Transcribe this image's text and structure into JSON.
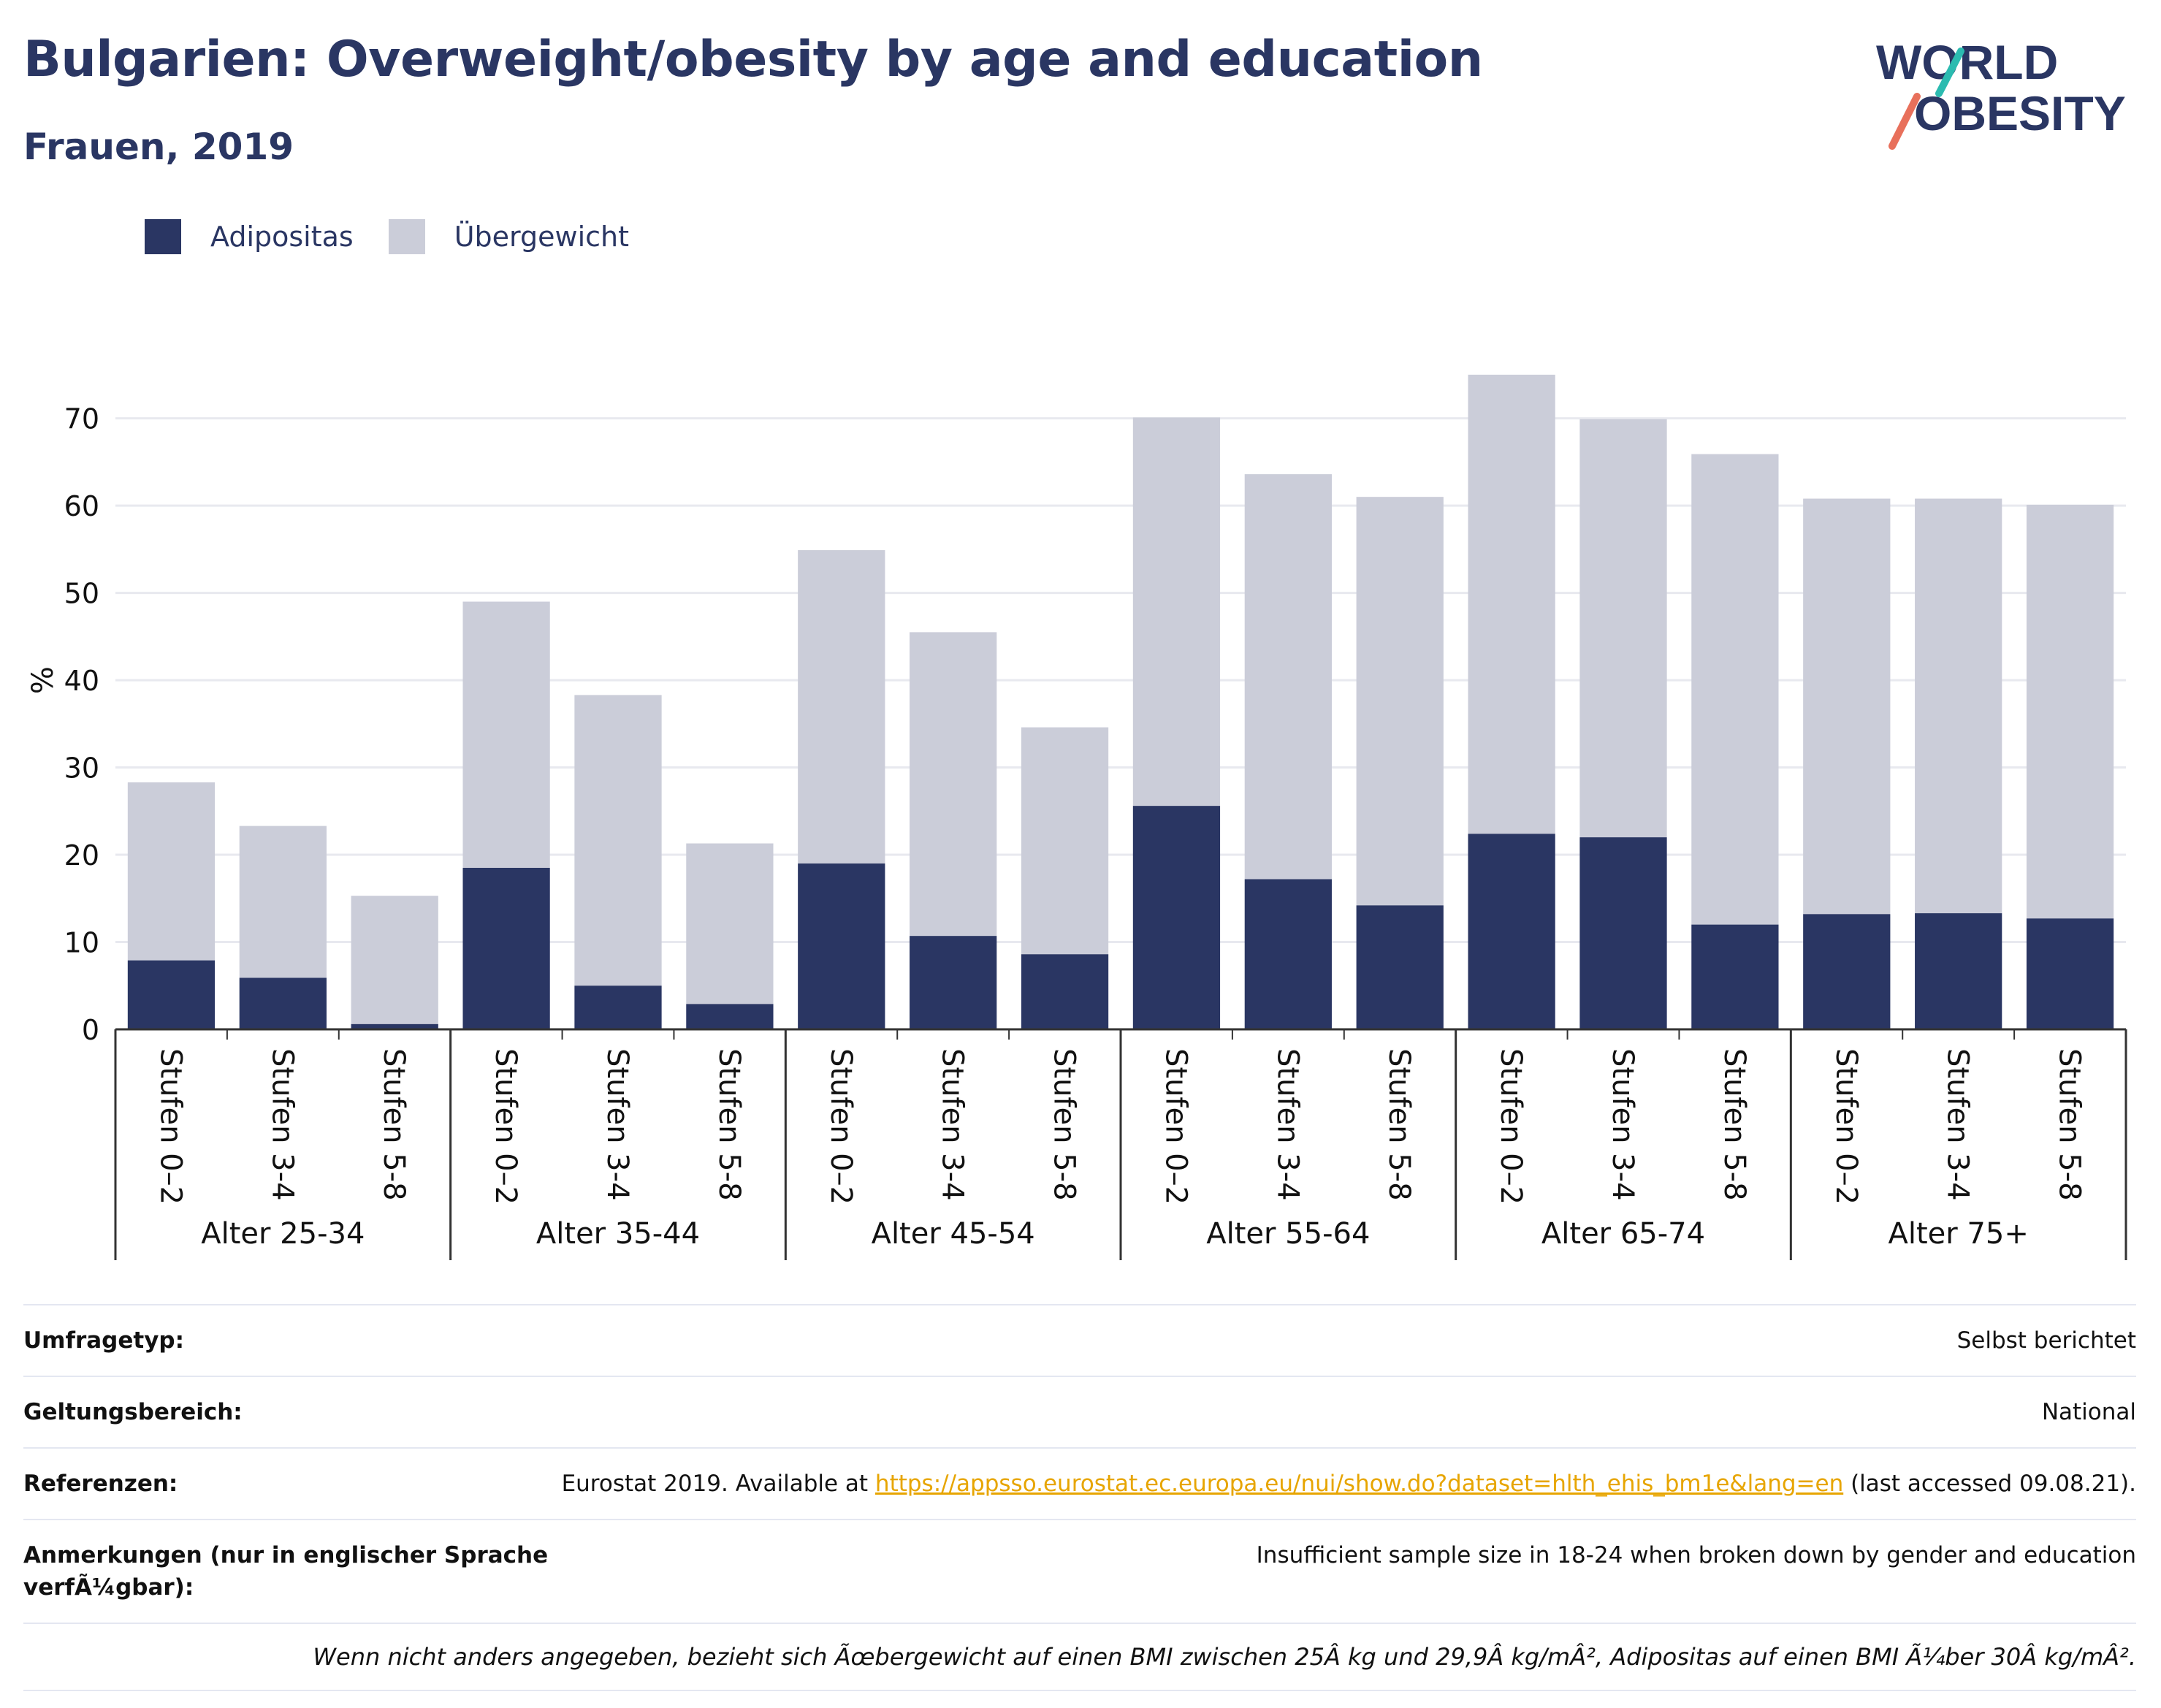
{
  "header": {
    "title": "Bulgarien: Overweight/obesity by age and education",
    "subtitle": "Frauen, 2019"
  },
  "logo": {
    "line1": "WORLD",
    "line2": "OBESITY",
    "accent_teal": "#2bbbb0",
    "accent_coral": "#e8705b"
  },
  "colors": {
    "obesity": "#2a3663",
    "overweight": "#cbcdd9",
    "grid": "#e8e9ef",
    "axis": "#333333"
  },
  "chart_data": {
    "type": "bar",
    "stacked": true,
    "ylabel": "%",
    "ylim": [
      0,
      77
    ],
    "yticks": [
      0,
      10,
      20,
      30,
      40,
      50,
      60,
      70
    ],
    "grid": true,
    "legend_position": "top-left",
    "legend": [
      "Adipositas",
      "Übergewicht"
    ],
    "groups": [
      "Alter 25-34",
      "Alter 35-44",
      "Alter 45-54",
      "Alter 55-64",
      "Alter 65-74",
      "Alter 75+"
    ],
    "subcategories": [
      "Stufen 0–2",
      "Stufen 3-4",
      "Stufen 5-8"
    ],
    "series": [
      {
        "name": "Adipositas",
        "values": [
          7.9,
          5.9,
          0.6,
          18.5,
          5.0,
          2.9,
          19.0,
          10.7,
          8.6,
          25.6,
          17.2,
          14.2,
          22.4,
          22.0,
          12.0,
          13.2,
          13.3,
          12.7
        ]
      },
      {
        "name": "Übergewicht",
        "values": [
          20.4,
          17.4,
          14.7,
          30.5,
          33.3,
          18.4,
          35.9,
          34.8,
          26.0,
          44.5,
          46.4,
          46.8,
          52.6,
          47.9,
          53.9,
          47.6,
          47.5,
          47.4
        ]
      }
    ],
    "totals": [
      28.3,
      23.3,
      15.3,
      49.0,
      38.3,
      21.3,
      54.9,
      45.5,
      34.6,
      70.1,
      63.6,
      61.0,
      75.0,
      69.9,
      65.9,
      60.8,
      60.8,
      60.1
    ]
  },
  "info": {
    "rows": [
      {
        "key": "Umfragetyp:",
        "value": "Selbst berichtet"
      },
      {
        "key": "Geltungsbereich:",
        "value": "National"
      },
      {
        "key": "Referenzen:",
        "value_prefix": "Eurostat 2019. Available at ",
        "link": "https://appsso.eurostat.ec.europa.eu/nui/show.do?dataset=hlth_ehis_bm1e&lang=en",
        "value_suffix": " (last accessed 09.08.21)."
      },
      {
        "key": "Anmerkungen (nur in englischer Sprache verfÃ¼gbar):",
        "value": "Insufficient sample size in 18-24 when broken down by gender and education"
      }
    ],
    "note": "Wenn nicht anders angegeben, bezieht sich Ãœbergewicht auf einen BMI zwischen 25Â kg und 29,9Â kg/mÂ², Adipositas auf einen BMI Ã¼ber 30Â kg/mÂ²."
  }
}
